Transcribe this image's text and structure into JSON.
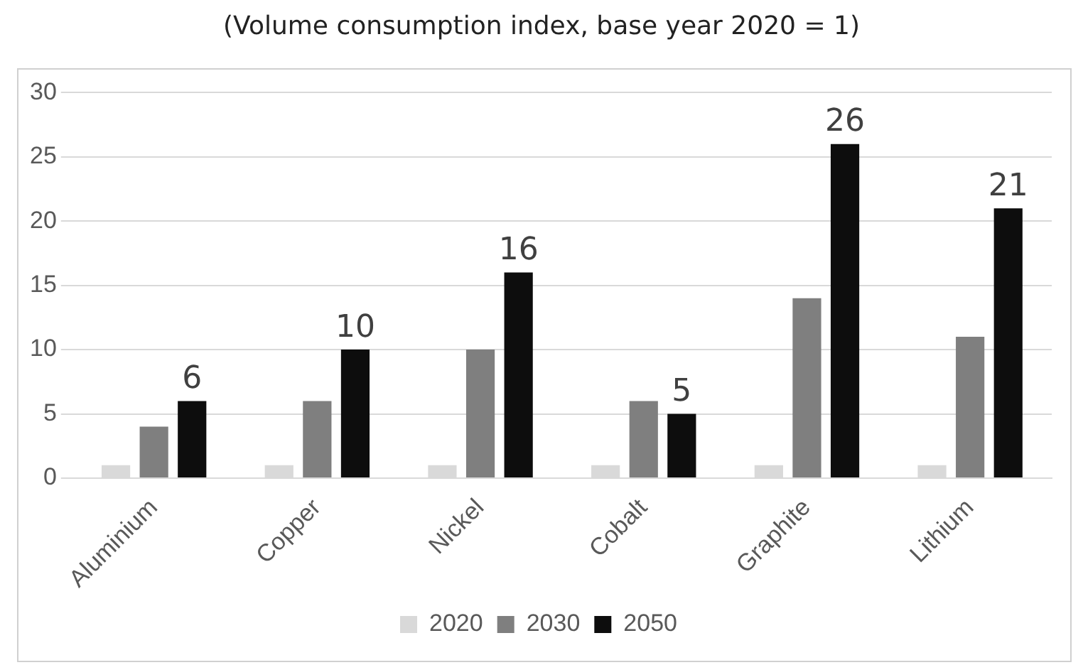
{
  "chart_data": {
    "type": "bar",
    "title": "(Volume consumption index, base year 2020 = 1)",
    "categories": [
      "Aluminium",
      "Copper",
      "Nickel",
      "Cobalt",
      "Graphite",
      "Lithium"
    ],
    "series": [
      {
        "name": "2020",
        "color": "#d9d9d9",
        "values": [
          1,
          1,
          1,
          1,
          1,
          1
        ]
      },
      {
        "name": "2030",
        "color": "#7f7f7f",
        "values": [
          4,
          6,
          10,
          6,
          14,
          11
        ]
      },
      {
        "name": "2050",
        "color": "#0d0d0d",
        "values": [
          6,
          10,
          16,
          5,
          26,
          21
        ],
        "value_labels": [
          "6",
          "10",
          "16",
          "5",
          "26",
          "21"
        ]
      }
    ],
    "ylim": [
      0,
      30
    ],
    "yticks": [
      0,
      5,
      10,
      15,
      20,
      25,
      30
    ],
    "grid": "y",
    "legend": "bottom"
  }
}
